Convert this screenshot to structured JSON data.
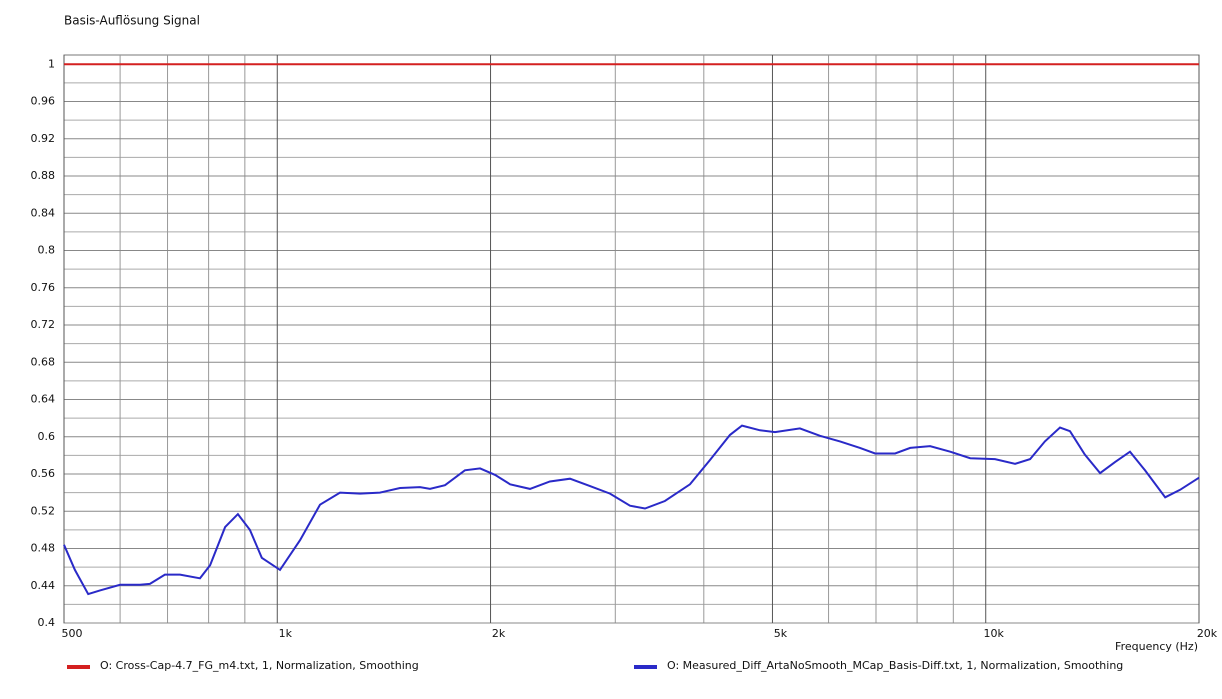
{
  "chart_data": {
    "type": "line",
    "title": "Basis-Auflösung Signal",
    "x_label": "Frequency  (Hz)",
    "x_log": true,
    "grid": true,
    "xlim": [
      500,
      20000
    ],
    "ylim": [
      0.4,
      1.01
    ],
    "xticks": [
      500,
      {
        "value": 1000,
        "label": "1k"
      },
      {
        "value": 2000,
        "label": "2k"
      },
      {
        "value": 5000,
        "label": "5k"
      },
      {
        "value": 10000,
        "label": "10k"
      },
      {
        "value": 20000,
        "label": "20k"
      }
    ],
    "minor_xticks": [
      600,
      700,
      800,
      900,
      3000,
      4000,
      6000,
      7000,
      8000,
      9000
    ],
    "yticks": [
      1,
      0.96,
      0.92,
      0.88,
      0.84,
      0.8,
      0.76,
      0.72,
      0.68,
      0.64,
      0.6,
      0.56,
      0.52,
      0.48,
      0.44,
      0.4
    ],
    "minor_yticks": [
      0.98,
      0.94,
      0.9,
      0.86,
      0.82,
      0.78,
      0.74,
      0.7,
      0.66,
      0.62,
      0.58,
      0.54,
      0.5,
      0.46,
      0.42
    ],
    "series": [
      {
        "name": "O: Cross-Cap-4.7_FG_m4.txt, 1, Normalization, Smoothing",
        "color": "#d42020",
        "x": [
          500,
          20000
        ],
        "values": [
          1,
          1
        ]
      },
      {
        "name": "O: Measured_Diff_ArtaNoSmooth_MCap_Basis-Diff.txt, 1, Normalization, Smoothing",
        "color": "#2a2ac8",
        "x": [
          500,
          518,
          541,
          562,
          600,
          640,
          661,
          694,
          729,
          778,
          804,
          844,
          880,
          915,
          951,
          1009,
          1077,
          1149,
          1226,
          1309,
          1396,
          1490,
          1590,
          1643,
          1725,
          1840,
          1933,
          2030,
          2131,
          2274,
          2426,
          2589,
          2763,
          2949,
          3147,
          3304,
          3525,
          3825,
          4081,
          4355,
          4528,
          4801,
          5042,
          5467,
          5835,
          6227,
          6645,
          6979,
          7448,
          7822,
          8347,
          8908,
          9507,
          10307,
          11000,
          11550,
          12120,
          12730,
          13150,
          13800,
          14500,
          15230,
          15980,
          16780,
          17920,
          18810,
          20000
        ],
        "values": [
          0.484,
          0.457,
          0.431,
          0.435,
          0.441,
          0.441,
          0.442,
          0.452,
          0.452,
          0.448,
          0.462,
          0.503,
          0.517,
          0.5,
          0.47,
          0.457,
          0.489,
          0.527,
          0.54,
          0.539,
          0.54,
          0.545,
          0.546,
          0.544,
          0.548,
          0.564,
          0.566,
          0.559,
          0.549,
          0.544,
          0.552,
          0.555,
          0.547,
          0.539,
          0.526,
          0.523,
          0.531,
          0.549,
          0.575,
          0.602,
          0.612,
          0.607,
          0.605,
          0.609,
          0.601,
          0.595,
          0.588,
          0.582,
          0.582,
          0.588,
          0.59,
          0.584,
          0.577,
          0.576,
          0.571,
          0.576,
          0.595,
          0.61,
          0.606,
          0.581,
          0.561,
          0.573,
          0.584,
          0.564,
          0.535,
          0.543,
          0.556
        ]
      }
    ]
  }
}
